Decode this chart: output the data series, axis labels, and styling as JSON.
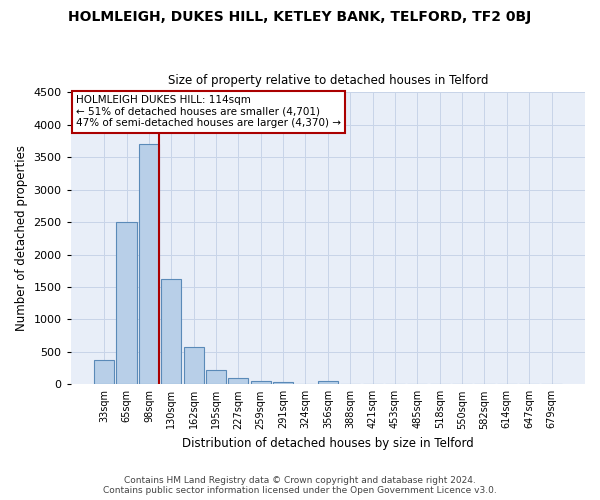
{
  "title": "HOLMLEIGH, DUKES HILL, KETLEY BANK, TELFORD, TF2 0BJ",
  "subtitle": "Size of property relative to detached houses in Telford",
  "xlabel": "Distribution of detached houses by size in Telford",
  "ylabel": "Number of detached properties",
  "footer_line1": "Contains HM Land Registry data © Crown copyright and database right 2024.",
  "footer_line2": "Contains public sector information licensed under the Open Government Licence v3.0.",
  "categories": [
    "33sqm",
    "65sqm",
    "98sqm",
    "130sqm",
    "162sqm",
    "195sqm",
    "227sqm",
    "259sqm",
    "291sqm",
    "324sqm",
    "356sqm",
    "388sqm",
    "421sqm",
    "453sqm",
    "485sqm",
    "518sqm",
    "550sqm",
    "582sqm",
    "614sqm",
    "647sqm",
    "679sqm"
  ],
  "values": [
    375,
    2500,
    3700,
    1625,
    575,
    225,
    100,
    55,
    35,
    0,
    55,
    0,
    0,
    0,
    0,
    0,
    0,
    0,
    0,
    0,
    0
  ],
  "bar_color": "#b8cfe8",
  "bar_edge_color": "#5a8ab8",
  "grid_color": "#c8d4e8",
  "bg_color": "#e8eef8",
  "ylim": [
    0,
    4500
  ],
  "yticks": [
    0,
    500,
    1000,
    1500,
    2000,
    2500,
    3000,
    3500,
    4000,
    4500
  ],
  "property_bin_index": 2,
  "annotation_title": "HOLMLEIGH DUKES HILL: 114sqm",
  "annotation_line1": "← 51% of detached houses are smaller (4,701)",
  "annotation_line2": "47% of semi-detached houses are larger (4,370) →",
  "red_line_color": "#aa0000",
  "annotation_box_color": "#aa0000",
  "figsize": [
    6.0,
    5.0
  ],
  "dpi": 100
}
